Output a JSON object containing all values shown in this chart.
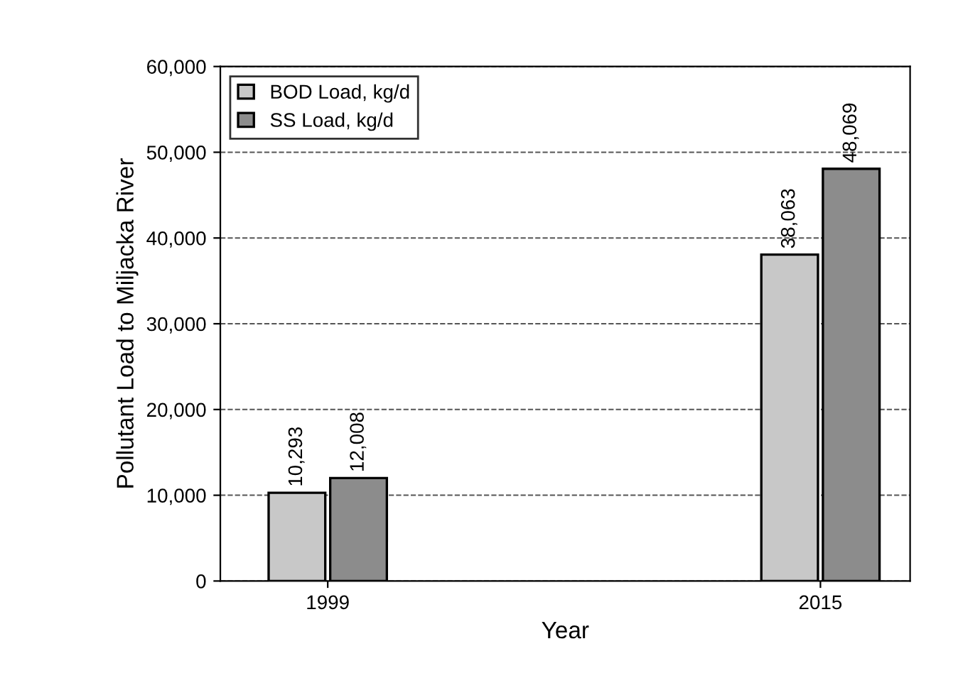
{
  "chart_data": {
    "type": "bar",
    "xlabel": "Year",
    "ylabel": "Pollutant Load to Miljacka River",
    "categories": [
      "1999",
      "2015"
    ],
    "series": [
      {
        "name": "BOD Load, kg/d",
        "color": "#c8c8c8",
        "values": [
          10293,
          38063
        ],
        "value_labels": [
          "10,293",
          "38,063"
        ]
      },
      {
        "name": "SS Load, kg/d",
        "color": "#8c8c8c",
        "values": [
          12008,
          48069
        ],
        "value_labels": [
          "12,008",
          "48,069"
        ]
      }
    ],
    "ylim": [
      0,
      60000
    ],
    "yticks": [
      0,
      {
        "value": 10000,
        "label": "10,000"
      },
      {
        "value": 20000,
        "label": "20,000"
      },
      {
        "value": 30000,
        "label": "30,000"
      },
      {
        "value": 40000,
        "label": "40,000"
      },
      {
        "value": 50000,
        "label": "50,000"
      },
      {
        "value": 60000,
        "label": "60,000"
      }
    ],
    "grid": "y",
    "legend": "top left"
  }
}
